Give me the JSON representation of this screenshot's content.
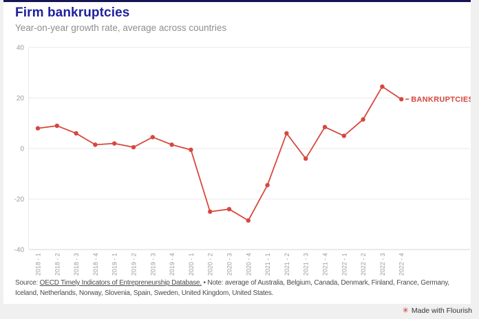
{
  "page": {
    "background_color": "#f0f0f0",
    "card_color": "#ffffff",
    "top_bar_color": "#161655"
  },
  "header": {
    "title": "Firm bankruptcies",
    "subtitle": "Year-on-year growth rate, average across countries",
    "title_color": "#1f1f9c"
  },
  "chart_data": {
    "type": "line",
    "categories": [
      "2018 - 1",
      "2018 - 2",
      "2018 - 3",
      "2018 - 4",
      "2019 - 1",
      "2019 - 2",
      "2019 - 3",
      "2019 - 4",
      "2020 - 1",
      "2020 - 2",
      "2020 - 3",
      "2020 - 4",
      "2021 - 1",
      "2021 - 2",
      "2021 - 3",
      "2021 - 4",
      "2022 - 1",
      "2022 - 2",
      "2022 - 3",
      "2022 - 4"
    ],
    "series": [
      {
        "name": "BANKRUPTCIES",
        "values": [
          8,
          9,
          6,
          1.5,
          2,
          0.5,
          4.5,
          1.5,
          -0.5,
          -25,
          -24,
          -28.5,
          -14.5,
          6,
          -4,
          8.5,
          5,
          11.5,
          24.5,
          19.5
        ],
        "color": "#d6483e"
      }
    ],
    "title": "Firm bankruptcies",
    "subtitle": "Year-on-year growth rate, average across countries",
    "xlabel": "",
    "ylabel": "",
    "ylim": [
      -40,
      40
    ],
    "yticks": [
      40,
      20,
      0,
      -20,
      -40
    ],
    "grid": true,
    "legend_position": "inline-end-of-line",
    "marker": "circle",
    "tick_label_color": "#9b9b9b",
    "grid_color": "#e9e9e9",
    "axis_color": "#d6d6d6"
  },
  "footer": {
    "source_prefix": "Source:",
    "source_link": "OECD Timely Indicators of Entrepreneurship Database.",
    "note": "• Note: average of Australia, Belgium, Canada, Denmark, Finland, France, Germany, Iceland, Netherlands, Norway, Slovenia, Spain, Sweden, United Kingdom, United States."
  },
  "attribution": {
    "label": "Made with Flourish",
    "icon_color": "#d12b2b"
  }
}
